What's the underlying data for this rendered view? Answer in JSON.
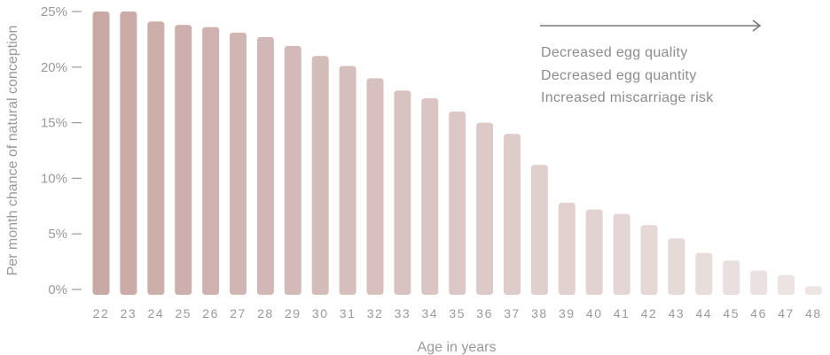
{
  "chart_data": {
    "type": "bar",
    "title": "",
    "xlabel": "Age in years",
    "ylabel": "Per month chance of natural conception",
    "ylim": [
      0,
      25
    ],
    "yticks": [
      "0%",
      "5%",
      "10%",
      "15%",
      "20%",
      "25%"
    ],
    "grid": false,
    "categories": [
      "22",
      "23",
      "24",
      "25",
      "26",
      "27",
      "28",
      "29",
      "30",
      "31",
      "32",
      "33",
      "34",
      "35",
      "36",
      "37",
      "38",
      "39",
      "40",
      "41",
      "42",
      "43",
      "44",
      "45",
      "46",
      "47",
      "48"
    ],
    "values": [
      25,
      25,
      24.1,
      23.8,
      23.6,
      23.1,
      22.7,
      21.9,
      21.0,
      20.1,
      19.0,
      17.9,
      17.2,
      16.0,
      15.0,
      14.0,
      11.2,
      7.8,
      7.2,
      6.8,
      5.8,
      4.6,
      3.3,
      2.6,
      1.7,
      1.3,
      0.3
    ],
    "bar_color_start": "#c9a9a6",
    "bar_color_end": "#ede6e5",
    "annotations": [
      "Decreased egg quality",
      "Decreased egg quantity",
      "Increased miscarriage risk"
    ],
    "arrow_color": "#7a7a7a"
  }
}
